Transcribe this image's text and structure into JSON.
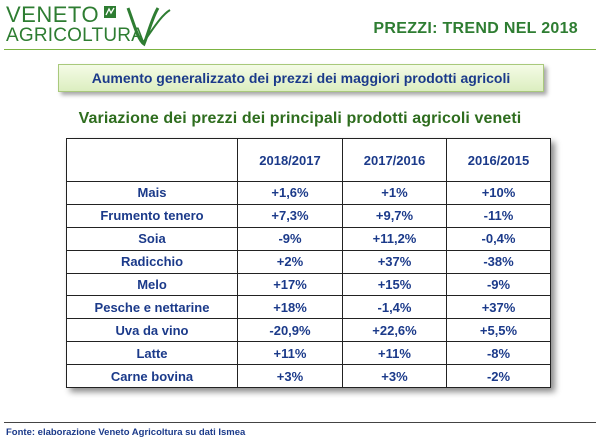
{
  "logo": {
    "line1": "VENETO",
    "line2": "AGRICOLTURA"
  },
  "header": {
    "title": "PREZZI: TREND NEL 2018"
  },
  "banner": {
    "text": "Aumento generalizzato dei prezzi dei maggiori prodotti agricoli"
  },
  "subtitle": "Variazione dei prezzi dei principali prodotti agricoli veneti",
  "table": {
    "headers": [
      "",
      "2018/2017",
      "2017/2016",
      "2016/2015"
    ],
    "rows": [
      {
        "product": "Mais",
        "values": [
          "+1,6%",
          "+1%",
          "+10%"
        ]
      },
      {
        "product": "Frumento tenero",
        "values": [
          "+7,3%",
          "+9,7%",
          "-11%"
        ]
      },
      {
        "product": "Soia",
        "values": [
          "-9%",
          "+11,2%",
          "-0,4%"
        ]
      },
      {
        "product": "Radicchio",
        "values": [
          "+2%",
          "+37%",
          "-38%"
        ]
      },
      {
        "product": "Melo",
        "values": [
          "+17%",
          "+15%",
          "-9%"
        ]
      },
      {
        "product": "Pesche e nettarine",
        "values": [
          "+18%",
          "-1,4%",
          "+37%"
        ]
      },
      {
        "product": "Uva da vino",
        "values": [
          "-20,9%",
          "+22,6%",
          "+5,5%"
        ]
      },
      {
        "product": "Latte",
        "values": [
          "+11%",
          "+11%",
          "-8%"
        ]
      },
      {
        "product": "Carne bovina",
        "values": [
          "+3%",
          "+3%",
          "-2%"
        ]
      }
    ]
  },
  "footer": "Fonte: elaborazione Veneto Agricoltura su dati Ismea",
  "colors": {
    "brand_green": "#2e7d32",
    "text_blue": "#1b3a8a",
    "header_red": "#d32f2f",
    "highlight_red": "#e02020"
  }
}
